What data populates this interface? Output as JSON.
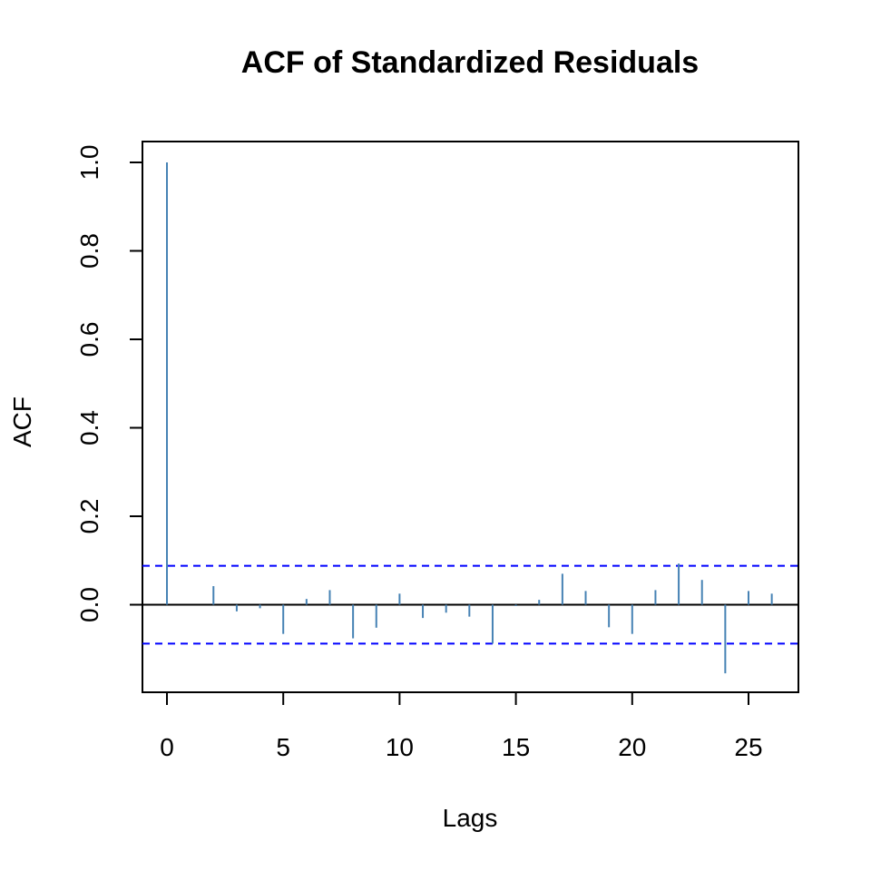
{
  "chart_data": {
    "type": "bar",
    "title": "ACF of Standardized Residuals",
    "xlabel": "Lags",
    "ylabel": "ACF",
    "xlim": [
      -1,
      27
    ],
    "ylim": [
      -0.2,
      1.05
    ],
    "x_ticks": [
      0,
      5,
      10,
      15,
      20,
      25
    ],
    "y_ticks": [
      0.0,
      0.2,
      0.4,
      0.6,
      0.8,
      1.0
    ],
    "x_tick_labels": [
      "0",
      "5",
      "10",
      "15",
      "20",
      "25"
    ],
    "y_tick_labels": [
      "0.0",
      "0.2",
      "0.4",
      "0.6",
      "0.8",
      "1.0"
    ],
    "lags": [
      0,
      1,
      2,
      3,
      4,
      5,
      6,
      7,
      8,
      9,
      10,
      11,
      12,
      13,
      14,
      15,
      16,
      17,
      18,
      19,
      20,
      21,
      22,
      23,
      24,
      25,
      26
    ],
    "values": [
      1.0,
      0.0,
      0.042,
      -0.015,
      -0.008,
      -0.066,
      0.013,
      0.033,
      -0.076,
      -0.052,
      0.025,
      -0.03,
      -0.018,
      -0.027,
      -0.088,
      -0.003,
      0.011,
      0.07,
      0.031,
      -0.051,
      -0.066,
      0.033,
      0.093,
      0.056,
      -0.155,
      0.031,
      0.025
    ],
    "confidence_bound": 0.088,
    "grid": false,
    "colors": {
      "bars": "#4682b4",
      "confidence": "#0000ff",
      "zero_line": "#000000"
    }
  }
}
